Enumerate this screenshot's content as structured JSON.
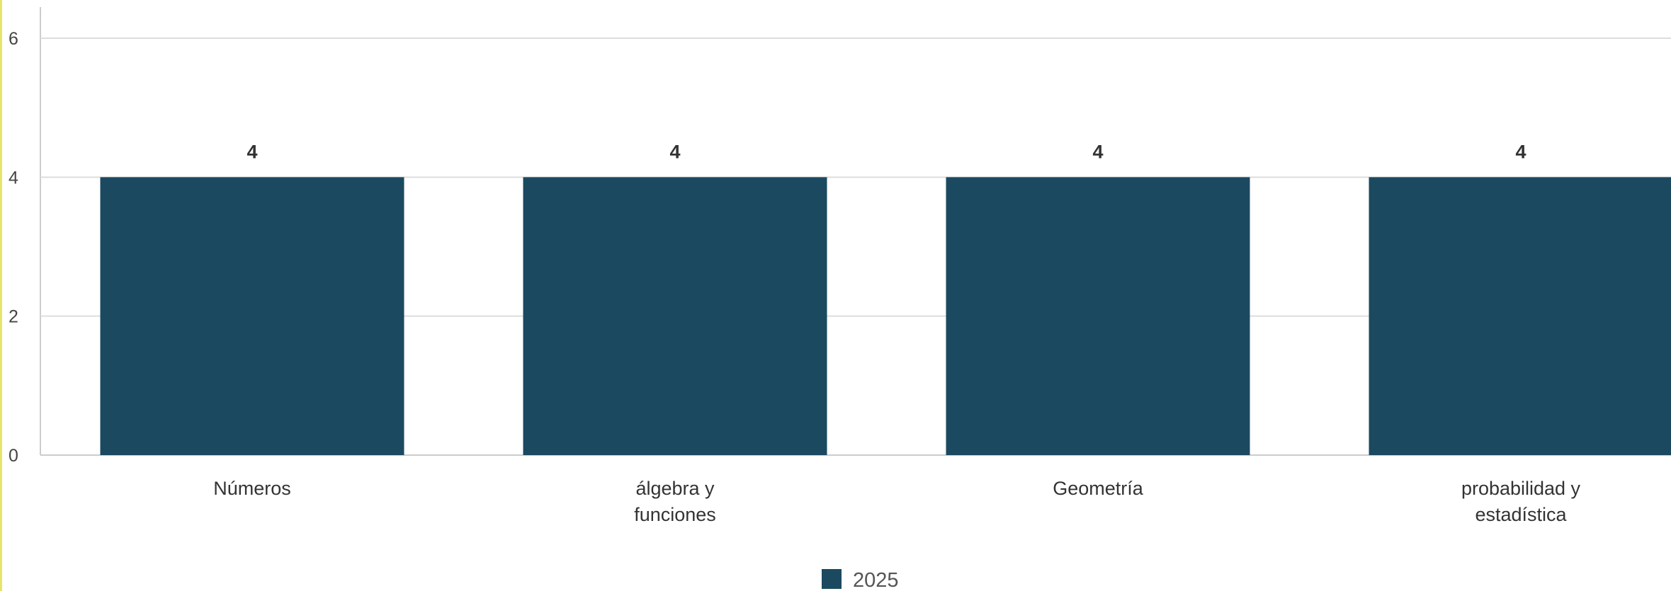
{
  "chart_data": {
    "type": "bar",
    "categories": [
      [
        "Números"
      ],
      [
        "álgebra y",
        "funciones"
      ],
      [
        "Geometría"
      ],
      [
        "probabilidad y",
        "estadística"
      ]
    ],
    "series": [
      {
        "name": "2025",
        "values": [
          4,
          4,
          4,
          4
        ],
        "color": "#1b4960"
      }
    ],
    "y_ticks": [
      "0",
      "2",
      "4",
      "6"
    ],
    "ylim": [
      0,
      6
    ],
    "grid": true,
    "data_labels": true,
    "legend": {
      "position": "bottom-center",
      "label": "2025"
    },
    "title": "",
    "xlabel": "",
    "ylabel": ""
  },
  "style": {
    "accent_edge": "#e8e46a",
    "grid_color": "#dddddd",
    "axis_color": "#cccccc"
  }
}
